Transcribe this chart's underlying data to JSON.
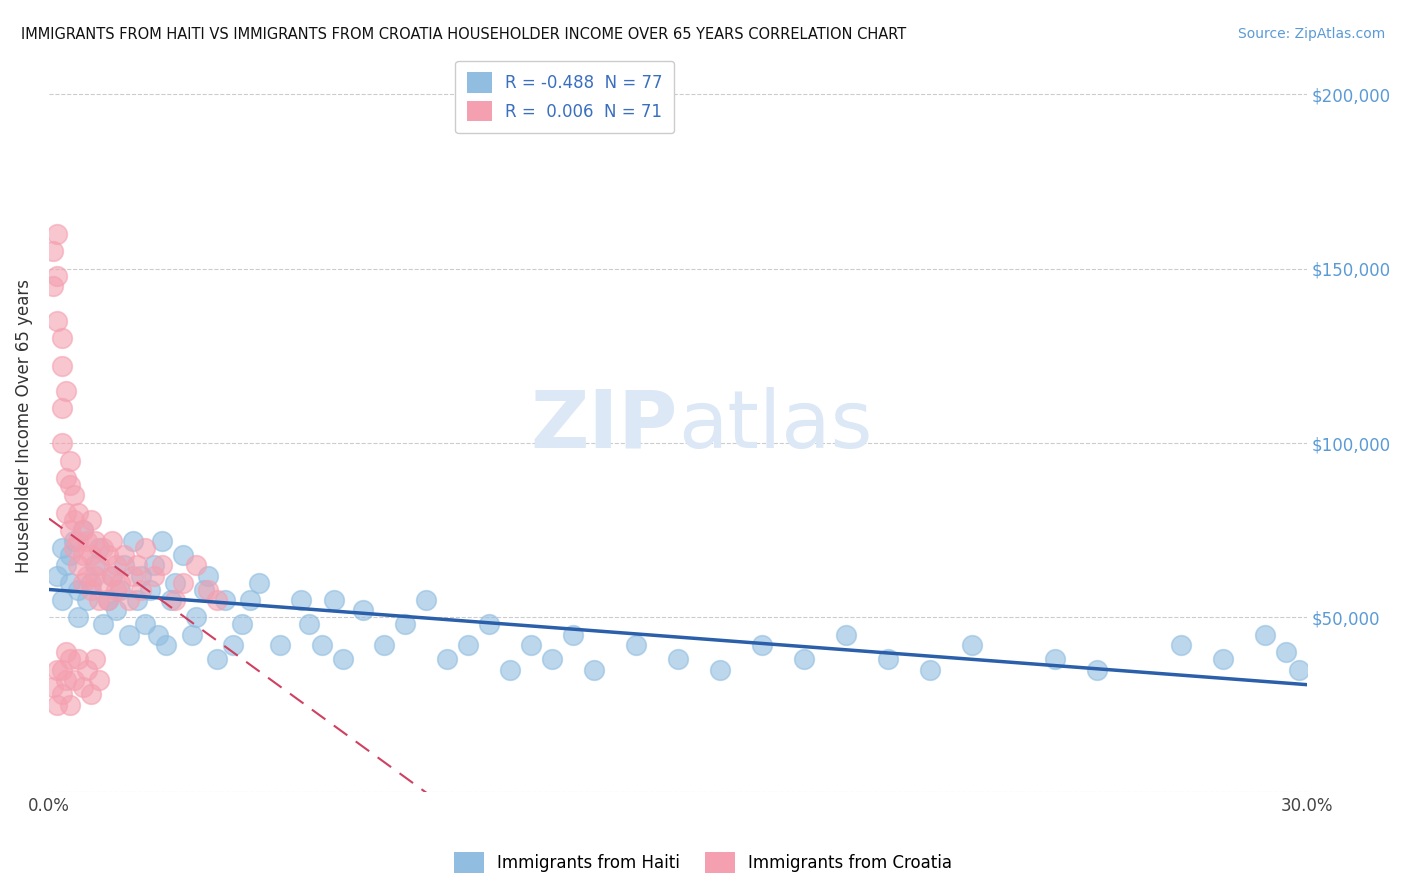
{
  "title": "IMMIGRANTS FROM HAITI VS IMMIGRANTS FROM CROATIA HOUSEHOLDER INCOME OVER 65 YEARS CORRELATION CHART",
  "source": "Source: ZipAtlas.com",
  "ylabel": "Householder Income Over 65 years",
  "xlim": [
    0.0,
    0.3
  ],
  "ylim": [
    0,
    210000
  ],
  "yticks": [
    0,
    50000,
    100000,
    150000,
    200000
  ],
  "xticks": [
    0.0,
    0.05,
    0.1,
    0.15,
    0.2,
    0.25,
    0.3
  ],
  "xtick_labels": [
    "0.0%",
    "",
    "",
    "",
    "",
    "",
    "30.0%"
  ],
  "haiti_color": "#90bde0",
  "croatia_color": "#f4a0b0",
  "trend_haiti_color": "#2b5faa",
  "trend_croatia_color": "#d04060",
  "watermark": "ZIPatlas",
  "watermark_color": "#dce8f5",
  "right_ytick_color": "#5b9bd5",
  "legend_label_haiti": "R = -0.488  N = 77",
  "legend_label_croatia": "R =  0.006  N = 71",
  "legend_text_color": "#3a6fbf",
  "haiti_x": [
    0.002,
    0.003,
    0.004,
    0.005,
    0.006,
    0.007,
    0.008,
    0.009,
    0.01,
    0.011,
    0.012,
    0.013,
    0.014,
    0.015,
    0.016,
    0.017,
    0.018,
    0.019,
    0.02,
    0.021,
    0.022,
    0.023,
    0.024,
    0.025,
    0.026,
    0.027,
    0.028,
    0.029,
    0.03,
    0.032,
    0.034,
    0.035,
    0.037,
    0.038,
    0.04,
    0.042,
    0.044,
    0.046,
    0.048,
    0.05,
    0.055,
    0.06,
    0.062,
    0.065,
    0.068,
    0.07,
    0.075,
    0.08,
    0.085,
    0.09,
    0.095,
    0.1,
    0.105,
    0.11,
    0.115,
    0.12,
    0.125,
    0.13,
    0.14,
    0.15,
    0.16,
    0.17,
    0.18,
    0.19,
    0.2,
    0.21,
    0.22,
    0.24,
    0.25,
    0.27,
    0.28,
    0.29,
    0.295,
    0.298,
    0.003,
    0.005,
    0.007
  ],
  "haiti_y": [
    62000,
    70000,
    65000,
    68000,
    72000,
    58000,
    75000,
    55000,
    60000,
    65000,
    70000,
    48000,
    55000,
    62000,
    52000,
    58000,
    65000,
    45000,
    72000,
    55000,
    62000,
    48000,
    58000,
    65000,
    45000,
    72000,
    42000,
    55000,
    60000,
    68000,
    45000,
    50000,
    58000,
    62000,
    38000,
    55000,
    42000,
    48000,
    55000,
    60000,
    42000,
    55000,
    48000,
    42000,
    55000,
    38000,
    52000,
    42000,
    48000,
    55000,
    38000,
    42000,
    48000,
    35000,
    42000,
    38000,
    45000,
    35000,
    42000,
    38000,
    35000,
    42000,
    38000,
    45000,
    38000,
    35000,
    42000,
    38000,
    35000,
    42000,
    38000,
    45000,
    40000,
    35000,
    55000,
    60000,
    50000
  ],
  "croatia_x": [
    0.001,
    0.001,
    0.002,
    0.002,
    0.002,
    0.003,
    0.003,
    0.003,
    0.003,
    0.004,
    0.004,
    0.004,
    0.005,
    0.005,
    0.005,
    0.006,
    0.006,
    0.006,
    0.007,
    0.007,
    0.007,
    0.008,
    0.008,
    0.008,
    0.009,
    0.009,
    0.01,
    0.01,
    0.01,
    0.011,
    0.011,
    0.012,
    0.012,
    0.013,
    0.013,
    0.014,
    0.014,
    0.015,
    0.015,
    0.016,
    0.016,
    0.017,
    0.018,
    0.019,
    0.02,
    0.021,
    0.022,
    0.023,
    0.025,
    0.027,
    0.03,
    0.032,
    0.035,
    0.038,
    0.04,
    0.001,
    0.002,
    0.002,
    0.003,
    0.003,
    0.004,
    0.004,
    0.005,
    0.005,
    0.006,
    0.007,
    0.008,
    0.009,
    0.01,
    0.011,
    0.012
  ],
  "croatia_y": [
    155000,
    145000,
    160000,
    148000,
    135000,
    130000,
    122000,
    110000,
    100000,
    90000,
    115000,
    80000,
    95000,
    88000,
    75000,
    85000,
    78000,
    70000,
    80000,
    72000,
    65000,
    75000,
    68000,
    60000,
    72000,
    62000,
    68000,
    78000,
    58000,
    72000,
    62000,
    65000,
    55000,
    70000,
    60000,
    68000,
    55000,
    62000,
    72000,
    58000,
    65000,
    60000,
    68000,
    55000,
    62000,
    65000,
    58000,
    70000,
    62000,
    65000,
    55000,
    60000,
    65000,
    58000,
    55000,
    30000,
    35000,
    25000,
    35000,
    28000,
    40000,
    32000,
    38000,
    25000,
    32000,
    38000,
    30000,
    35000,
    28000,
    38000,
    32000
  ]
}
